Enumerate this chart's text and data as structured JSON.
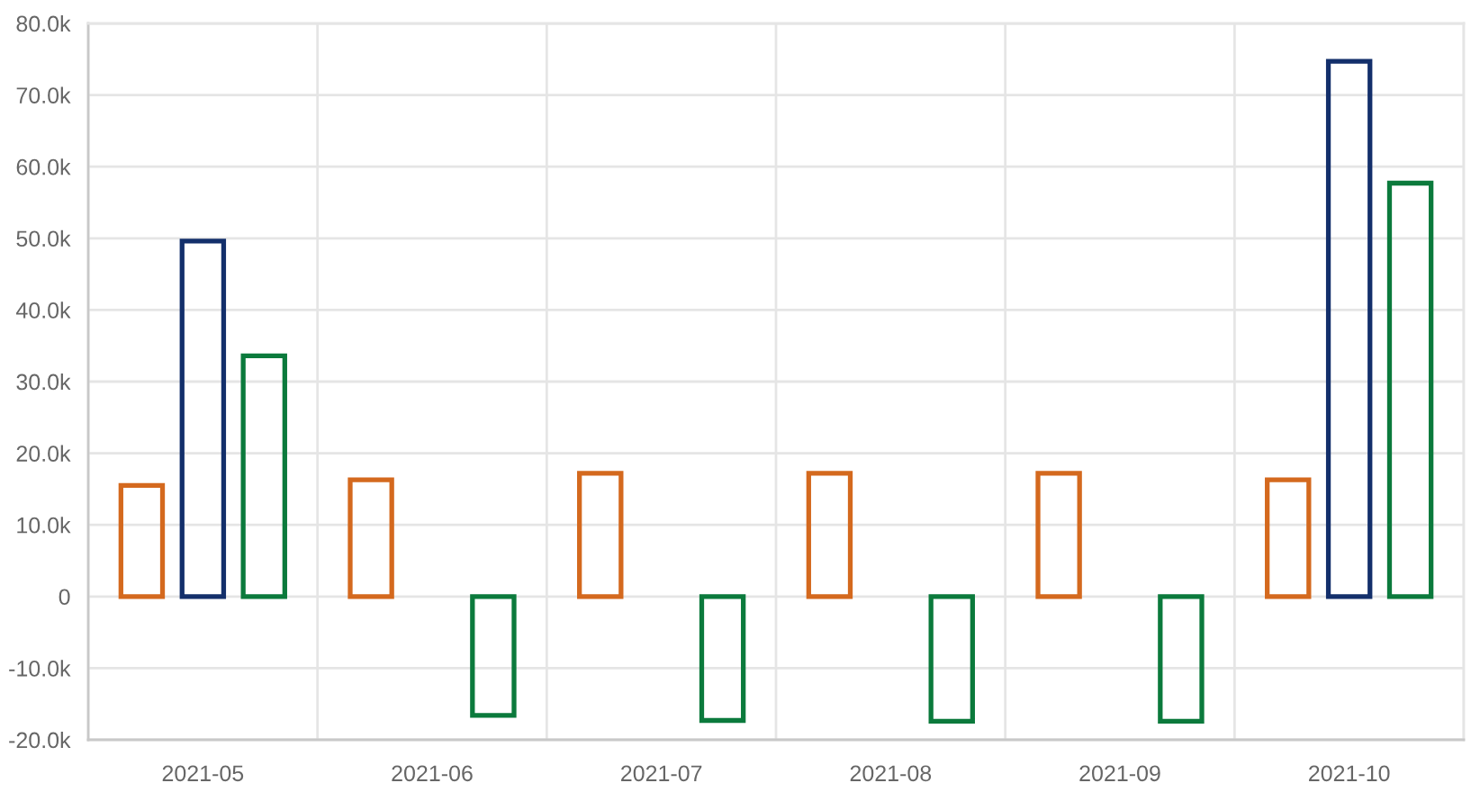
{
  "chart_data": {
    "type": "bar",
    "categories": [
      "2021-05",
      "2021-06",
      "2021-07",
      "2021-08",
      "2021-09",
      "2021-10"
    ],
    "series": [
      {
        "color": "#d4691e",
        "values": [
          15500,
          16300,
          17200,
          17200,
          17200,
          16300
        ]
      },
      {
        "color": "#132f6b",
        "values": [
          49600,
          null,
          null,
          null,
          null,
          74700
        ]
      },
      {
        "color": "#0b7a3c",
        "values": [
          33600,
          -16600,
          -17300,
          -17400,
          -17400,
          57700
        ]
      }
    ],
    "ylim": [
      -20000,
      80000
    ],
    "yticks": [
      {
        "value": -20000,
        "label": "-20.0k"
      },
      {
        "value": -10000,
        "label": "-10.0k"
      },
      0,
      {
        "value": 10000,
        "label": "10.0k"
      },
      {
        "value": 20000,
        "label": "20.0k"
      },
      {
        "value": 30000,
        "label": "30.0k"
      },
      {
        "value": 40000,
        "label": "40.0k"
      },
      {
        "value": 50000,
        "label": "50.0k"
      },
      {
        "value": 60000,
        "label": "60.0k"
      },
      {
        "value": 70000,
        "label": "70.0k"
      },
      {
        "value": 80000,
        "label": "80.0k"
      }
    ],
    "grid": true
  }
}
